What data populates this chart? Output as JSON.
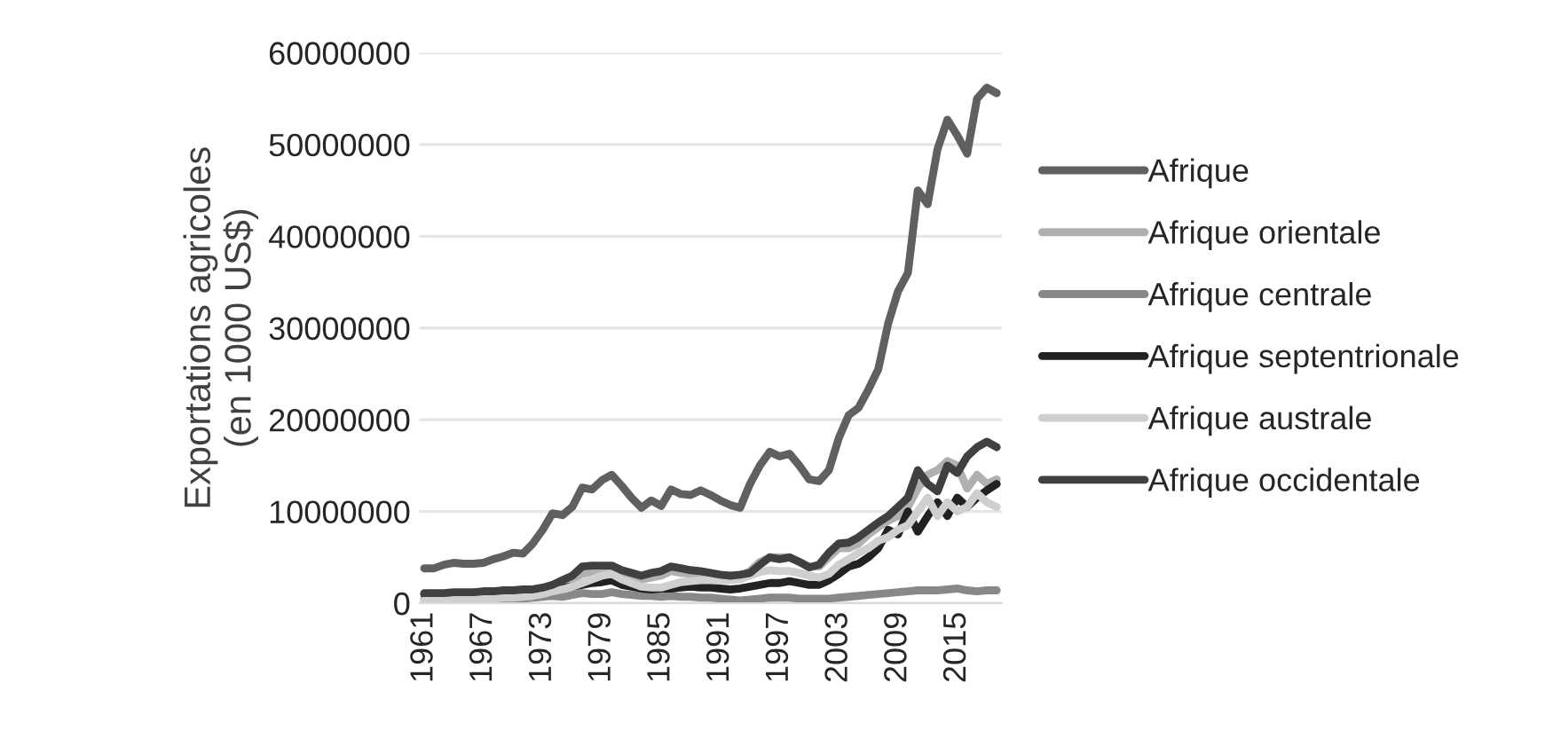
{
  "chart_data": {
    "type": "line",
    "ylabel": "Exportations agricoles\n(en 1000 US$)",
    "categories": [
      "1961",
      null,
      null,
      null,
      null,
      null,
      "1967",
      null,
      null,
      null,
      null,
      null,
      "1973",
      null,
      null,
      null,
      null,
      null,
      "1979",
      null,
      null,
      null,
      null,
      null,
      "1985",
      null,
      null,
      null,
      null,
      null,
      "1991",
      null,
      null,
      null,
      null,
      null,
      "1997",
      null,
      null,
      null,
      null,
      null,
      "2003",
      null,
      null,
      null,
      null,
      null,
      "2009",
      null,
      null,
      null,
      null,
      null,
      "2015",
      null,
      null,
      null,
      null
    ],
    "ylim": [
      0,
      60000000
    ],
    "yticks": [
      0,
      10000000,
      20000000,
      30000000,
      40000000,
      50000000,
      60000000
    ],
    "grid": "y",
    "legend": "right",
    "line_style": "solid",
    "marker": "none",
    "series": [
      {
        "name": "Afrique",
        "color": "#606060",
        "values": [
          3800000,
          3800000,
          4200000,
          4400000,
          4300000,
          4300000,
          4400000,
          4800000,
          5100000,
          5500000,
          5400000,
          6500000,
          8000000,
          9800000,
          9600000,
          10500000,
          12600000,
          12400000,
          13400000,
          14000000,
          12800000,
          11500000,
          10400000,
          11200000,
          10600000,
          12400000,
          11900000,
          11800000,
          12300000,
          11800000,
          11200000,
          10700000,
          10400000,
          13000000,
          15000000,
          16500000,
          16000000,
          16300000,
          15000000,
          13500000,
          13300000,
          14500000,
          18000000,
          20500000,
          21300000,
          23300000,
          25500000,
          30500000,
          34000000,
          36000000,
          45000000,
          43500000,
          49500000,
          52700000,
          51000000,
          49000000,
          55000000,
          56200000,
          55600000
        ]
      },
      {
        "name": "Afrique orientale",
        "color": "#b0b0b0",
        "values": [
          800000,
          800000,
          900000,
          900000,
          1000000,
          1000000,
          1000000,
          1100000,
          1100000,
          1200000,
          1300000,
          1400000,
          1600000,
          1900000,
          2200000,
          2600000,
          3200000,
          3400000,
          3500000,
          3500000,
          3000000,
          2800000,
          2600000,
          2800000,
          3000000,
          3500000,
          3300000,
          3200000,
          3100000,
          3000000,
          2800000,
          2700000,
          2800000,
          3500000,
          4500000,
          5000000,
          5000000,
          5000000,
          4500000,
          4000000,
          4000000,
          5000000,
          6000000,
          6000000,
          6500000,
          7500000,
          8300000,
          9000000,
          9500000,
          10500000,
          12500000,
          14000000,
          14500000,
          15500000,
          15000000,
          12500000,
          14000000,
          13000000,
          13500000
        ]
      },
      {
        "name": "Afrique centrale",
        "color": "#888888",
        "values": [
          400000,
          400000,
          400000,
          400000,
          400000,
          400000,
          400000,
          400000,
          500000,
          500000,
          500000,
          600000,
          700000,
          800000,
          700000,
          900000,
          1100000,
          1000000,
          1000000,
          1200000,
          1000000,
          900000,
          800000,
          800000,
          700000,
          800000,
          700000,
          700000,
          600000,
          600000,
          500000,
          400000,
          300000,
          400000,
          500000,
          600000,
          600000,
          600000,
          500000,
          500000,
          500000,
          500000,
          600000,
          700000,
          800000,
          900000,
          1000000,
          1100000,
          1200000,
          1300000,
          1400000,
          1400000,
          1400000,
          1500000,
          1600000,
          1400000,
          1300000,
          1400000,
          1400000
        ]
      },
      {
        "name": "Afrique septentrionale",
        "color": "#222222",
        "values": [
          1000000,
          1000000,
          1000000,
          1000000,
          1100000,
          1100000,
          1100000,
          1200000,
          1200000,
          1300000,
          1300000,
          1300000,
          1400000,
          1600000,
          1700000,
          1800000,
          2000000,
          2200000,
          2300000,
          2500000,
          2000000,
          1800000,
          1600000,
          1500000,
          1600000,
          1600000,
          1700000,
          1800000,
          1700000,
          1700000,
          1600000,
          1500000,
          1600000,
          1800000,
          2000000,
          2200000,
          2200000,
          2400000,
          2200000,
          2000000,
          2000000,
          2500000,
          3200000,
          4000000,
          4300000,
          5000000,
          6000000,
          8000000,
          7500000,
          10000000,
          7800000,
          9500000,
          11000000,
          9500000,
          11500000,
          10500000,
          11500000,
          12300000,
          13000000
        ]
      },
      {
        "name": "Afrique australe",
        "color": "#cfcfcf",
        "values": [
          300000,
          300000,
          300000,
          400000,
          400000,
          400000,
          500000,
          500000,
          600000,
          600000,
          700000,
          800000,
          1000000,
          1300000,
          1500000,
          1800000,
          2200000,
          2600000,
          3000000,
          3200000,
          2600000,
          2200000,
          1800000,
          1700000,
          1700000,
          2000000,
          2300000,
          2400000,
          2500000,
          2500000,
          2500000,
          2500000,
          2600000,
          3000000,
          3400000,
          3600000,
          3500000,
          3500000,
          3300000,
          3000000,
          2800000,
          3200000,
          4200000,
          4800000,
          5500000,
          6000000,
          6800000,
          7200000,
          8000000,
          8500000,
          10000000,
          11500000,
          9500000,
          11000000,
          10000000,
          10500000,
          12000000,
          11000000,
          10500000
        ]
      },
      {
        "name": "Afrique occidentale",
        "color": "#404040",
        "values": [
          1100000,
          1100000,
          1100000,
          1200000,
          1200000,
          1200000,
          1300000,
          1300000,
          1400000,
          1400000,
          1500000,
          1500000,
          1700000,
          2000000,
          2500000,
          3000000,
          4000000,
          4100000,
          4100000,
          4100000,
          3600000,
          3300000,
          3000000,
          3300000,
          3500000,
          4000000,
          3800000,
          3600000,
          3500000,
          3300000,
          3100000,
          3000000,
          3100000,
          3300000,
          4200000,
          5000000,
          4800000,
          5000000,
          4500000,
          3900000,
          4200000,
          5500000,
          6500000,
          6600000,
          7200000,
          8000000,
          8800000,
          9500000,
          10500000,
          11500000,
          14500000,
          13000000,
          12200000,
          15000000,
          14200000,
          16000000,
          17000000,
          17600000,
          17000000
        ]
      }
    ]
  }
}
